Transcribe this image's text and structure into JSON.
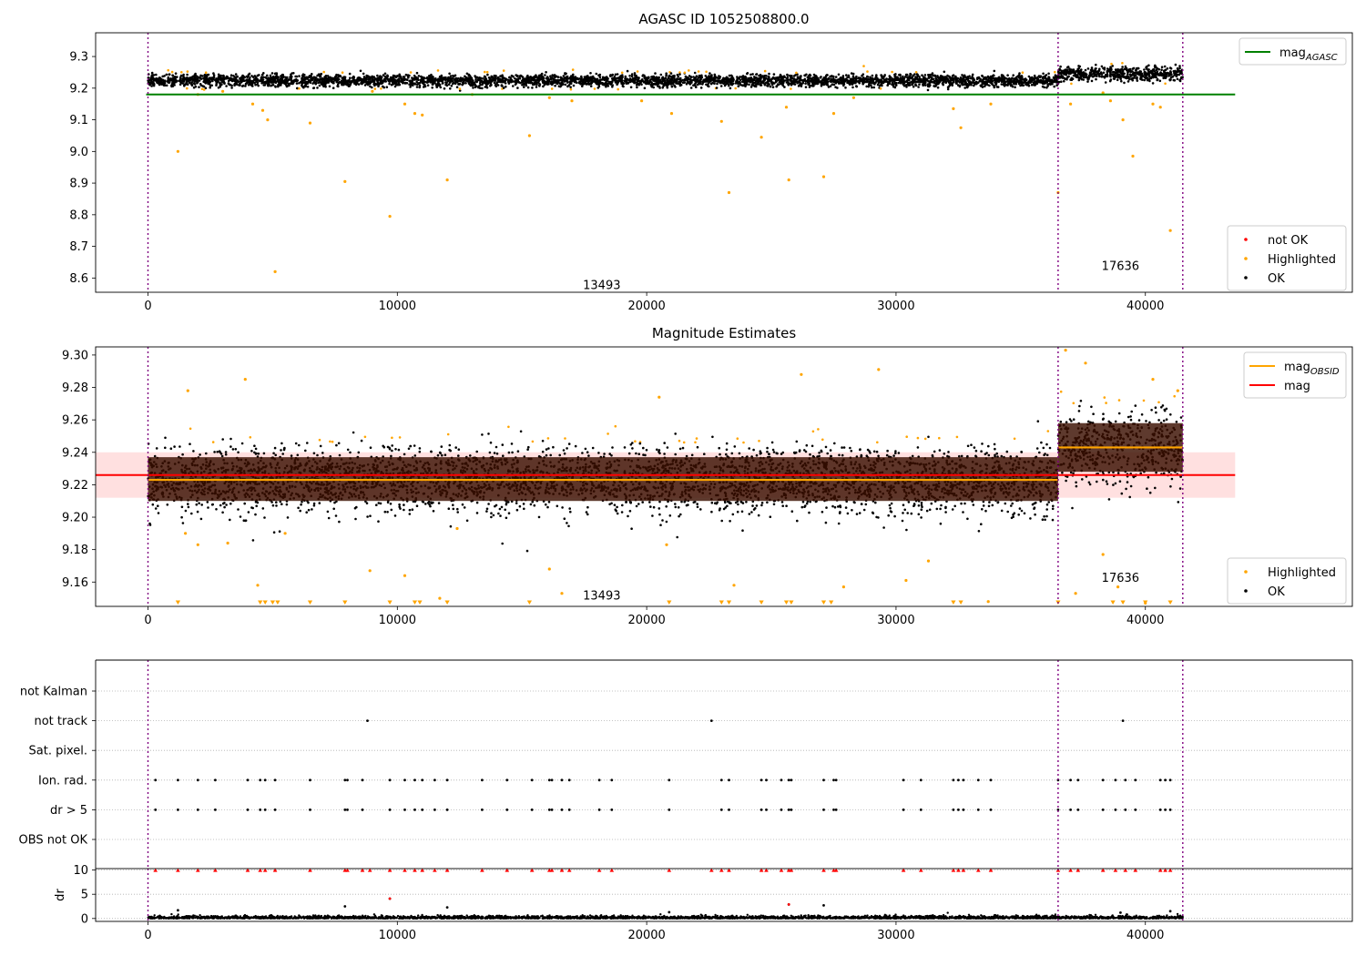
{
  "figure": {
    "title": "AGASC ID 1052508800.0"
  },
  "colors": {
    "ok": "#000000",
    "not_ok": "#ff0000",
    "highlighted": "#ffa500",
    "agasc_line": "#008000",
    "obsid_line": "#ffa500",
    "mag_line": "#ff0000",
    "mag_band": "#ffcccc",
    "obs_sep": "#800080",
    "err_band": "#3a0f00"
  },
  "chart_data": [
    {
      "type": "scatter",
      "id": "top",
      "title": "AGASC ID 1052508800.0",
      "xlim": [
        -2100,
        48300
      ],
      "ylim": [
        8.555,
        9.375
      ],
      "xticks": [
        0,
        10000,
        20000,
        30000,
        40000
      ],
      "yticks": [
        "8.6",
        "8.7",
        "8.8",
        "8.9",
        "9.0",
        "9.1",
        "9.2",
        "9.3"
      ],
      "grid": false,
      "legend_top": [
        {
          "label": "mag",
          "sub": "AGASC",
          "kind": "line",
          "color": "#008000"
        }
      ],
      "legend_bottom": [
        {
          "label": "not OK",
          "kind": "dot",
          "color": "#ff0000"
        },
        {
          "label": "Highlighted",
          "kind": "dot",
          "color": "#ffa500"
        },
        {
          "label": "OK",
          "kind": "dot",
          "color": "#000000"
        }
      ],
      "obs_boundaries": [
        0,
        36500,
        41500
      ],
      "obs_labels": [
        {
          "text": "13493",
          "x": 18200,
          "y": 8.58
        },
        {
          "text": "17636",
          "x": 39000,
          "y": 8.64
        }
      ],
      "mag_agasc": {
        "value": 9.18,
        "xrange": [
          0,
          43600
        ]
      },
      "segments": [
        {
          "x0": 0,
          "x1": 36500,
          "center": 9.224,
          "spread": 0.018
        },
        {
          "x0": 36500,
          "x1": 41500,
          "center": 9.245,
          "spread": 0.022
        }
      ],
      "highlighted_points": [
        [
          1200,
          9.0
        ],
        [
          4200,
          9.15
        ],
        [
          4600,
          9.13
        ],
        [
          4800,
          9.1
        ],
        [
          6500,
          9.09
        ],
        [
          7900,
          8.905
        ],
        [
          9700,
          8.795
        ],
        [
          10300,
          9.15
        ],
        [
          10700,
          9.12
        ],
        [
          11000,
          9.115
        ],
        [
          12000,
          8.91
        ],
        [
          5100,
          8.62
        ],
        [
          15300,
          9.05
        ],
        [
          16100,
          9.17
        ],
        [
          19800,
          9.16
        ],
        [
          21000,
          9.12
        ],
        [
          23000,
          9.095
        ],
        [
          23300,
          8.87
        ],
        [
          24600,
          9.045
        ],
        [
          25600,
          9.14
        ],
        [
          25700,
          8.91
        ],
        [
          27100,
          8.92
        ],
        [
          27500,
          9.12
        ],
        [
          28300,
          9.17
        ],
        [
          32300,
          9.135
        ],
        [
          32600,
          9.075
        ],
        [
          33800,
          9.15
        ],
        [
          36500,
          8.87
        ],
        [
          37000,
          9.15
        ],
        [
          38300,
          9.185
        ],
        [
          38600,
          9.16
        ],
        [
          39100,
          9.1
        ],
        [
          39500,
          8.985
        ],
        [
          40300,
          9.15
        ],
        [
          40600,
          9.14
        ],
        [
          41000,
          8.75
        ],
        [
          2000,
          9.18
        ],
        [
          3000,
          9.19
        ],
        [
          9000,
          9.19
        ],
        [
          13000,
          9.18
        ],
        [
          17000,
          9.16
        ]
      ]
    },
    {
      "type": "scatter",
      "id": "mid",
      "title": "Magnitude Estimates",
      "xlim": [
        -2100,
        48300
      ],
      "ylim": [
        9.145,
        9.305
      ],
      "xticks": [
        0,
        10000,
        20000,
        30000,
        40000
      ],
      "yticks": [
        "9.16",
        "9.18",
        "9.20",
        "9.22",
        "9.24",
        "9.26",
        "9.28",
        "9.30"
      ],
      "grid": false,
      "legend_top": [
        {
          "label": "mag",
          "sub": "OBSID",
          "kind": "line",
          "color": "#ffa500"
        },
        {
          "label": "mag",
          "sub": "",
          "kind": "line",
          "color": "#ff0000"
        }
      ],
      "legend_bottom": [
        {
          "label": "Highlighted",
          "kind": "dot",
          "color": "#ffa500"
        },
        {
          "label": "OK",
          "kind": "dot",
          "color": "#000000"
        }
      ],
      "obs_boundaries": [
        0,
        36500,
        41500
      ],
      "obs_labels": [
        {
          "text": "13493",
          "x": 18200,
          "y": 9.152
        },
        {
          "text": "17636",
          "x": 39000,
          "y": 9.163
        }
      ],
      "mag": {
        "value": 9.226,
        "band": [
          9.212,
          9.24
        ],
        "xrange": [
          -2100,
          43600
        ]
      },
      "mag_obsid": [
        {
          "x0": 0,
          "x1": 36500,
          "value": 9.223
        },
        {
          "x0": 36500,
          "x1": 41500,
          "value": 9.243
        }
      ],
      "segments": [
        {
          "x0": 0,
          "x1": 36500,
          "center": 9.223,
          "spread": 0.017,
          "band": [
            9.21,
            9.237
          ]
        },
        {
          "x0": 36500,
          "x1": 41500,
          "center": 9.243,
          "spread": 0.02,
          "band": [
            9.228,
            9.258
          ]
        }
      ],
      "highlighted_points": [
        [
          1600,
          9.278
        ],
        [
          3900,
          9.285
        ],
        [
          4400,
          9.158
        ],
        [
          5500,
          9.19
        ],
        [
          8900,
          9.167
        ],
        [
          10300,
          9.164
        ],
        [
          11700,
          9.15
        ],
        [
          16100,
          9.168
        ],
        [
          16600,
          9.153
        ],
        [
          20500,
          9.274
        ],
        [
          23500,
          9.158
        ],
        [
          26200,
          9.288
        ],
        [
          29300,
          9.291
        ],
        [
          30400,
          9.161
        ],
        [
          31300,
          9.173
        ],
        [
          33700,
          9.148
        ],
        [
          36800,
          9.303
        ],
        [
          37200,
          9.153
        ],
        [
          37600,
          9.295
        ],
        [
          38300,
          9.177
        ],
        [
          38900,
          9.157
        ],
        [
          40000,
          9.147
        ],
        [
          40300,
          9.285
        ],
        [
          41300,
          9.278
        ],
        [
          27900,
          9.157
        ],
        [
          1500,
          9.19
        ],
        [
          2000,
          9.183
        ],
        [
          3200,
          9.184
        ],
        [
          12400,
          9.193
        ],
        [
          20800,
          9.183
        ]
      ],
      "below_markers": [
        1200,
        4500,
        4700,
        5000,
        5200,
        6500,
        7900,
        9700,
        10700,
        10900,
        12000,
        15300,
        20900,
        23000,
        23300,
        24600,
        25600,
        25800,
        27100,
        27400,
        32300,
        32600,
        36500,
        38700,
        39100,
        40000,
        41000
      ]
    },
    {
      "type": "scatter",
      "id": "flags",
      "xlim": [
        -2100,
        48300
      ],
      "categories": [
        "not Kalman",
        "not track",
        "Sat. pixel.",
        "Ion. rad.",
        "dr > 5",
        "OBS not OK"
      ],
      "grid": true,
      "obs_boundaries": [
        0,
        36500,
        41500
      ],
      "flags": {
        "not track": [
          8800,
          22600,
          39100
        ],
        "Ion. rad.": [
          300,
          1200,
          2000,
          2700,
          4000,
          4500,
          4700,
          5100,
          6500,
          7900,
          8000,
          8600,
          9700,
          10300,
          10700,
          11000,
          11500,
          12000,
          13400,
          14400,
          15400,
          16100,
          16200,
          16600,
          16900,
          18100,
          18600,
          20900,
          23000,
          23300,
          24600,
          24800,
          25400,
          25700,
          25800,
          27100,
          27500,
          27600,
          30300,
          31000,
          32300,
          32500,
          32700,
          33300,
          33800,
          36500,
          37000,
          37300,
          38300,
          38800,
          39200,
          39600,
          40600,
          40800,
          41000
        ],
        "dr > 5": [
          300,
          1200,
          2000,
          2700,
          4000,
          4500,
          4700,
          5100,
          6500,
          7900,
          8000,
          8600,
          9700,
          10300,
          10700,
          11000,
          11500,
          12000,
          13400,
          14400,
          15400,
          16100,
          16200,
          16600,
          16900,
          18100,
          18600,
          20900,
          23000,
          23300,
          24600,
          24800,
          25400,
          25700,
          25800,
          27100,
          27500,
          27600,
          30300,
          31000,
          32300,
          32500,
          32700,
          33300,
          33800,
          36500,
          37000,
          37300,
          38300,
          38800,
          39200,
          39600,
          40600,
          40800,
          41000
        ]
      }
    },
    {
      "type": "scatter",
      "id": "dr",
      "ylabel": "dr",
      "xlim": [
        -2100,
        48300
      ],
      "ylim": [
        -0.6,
        10.3
      ],
      "xticks": [
        0,
        10000,
        20000,
        30000,
        40000
      ],
      "yticks": [
        0,
        5,
        10
      ],
      "grid": true,
      "obs_boundaries": [
        0,
        36500,
        41500
      ],
      "outliers_red_at_10": [
        300,
        1200,
        2000,
        2700,
        4000,
        4500,
        4700,
        5100,
        6500,
        7900,
        8000,
        8600,
        8900,
        9700,
        10300,
        10700,
        11000,
        11500,
        12000,
        13400,
        14400,
        15400,
        16100,
        16200,
        16600,
        16900,
        18100,
        18600,
        20900,
        22600,
        23000,
        23300,
        24600,
        24800,
        25400,
        25700,
        25800,
        27100,
        27500,
        27600,
        30300,
        31000,
        32300,
        32500,
        32700,
        33300,
        33800,
        36500,
        37000,
        37300,
        38300,
        38800,
        39200,
        39600,
        40600,
        40800,
        41000
      ],
      "scattered": [
        [
          1200,
          1.7
        ],
        [
          7900,
          2.5
        ],
        [
          9700,
          4.1
        ],
        [
          12000,
          2.3
        ],
        [
          20900,
          1.3
        ],
        [
          25700,
          2.9
        ],
        [
          27100,
          2.7
        ],
        [
          41000,
          1.5
        ],
        [
          39000,
          1.2
        ]
      ]
    }
  ]
}
